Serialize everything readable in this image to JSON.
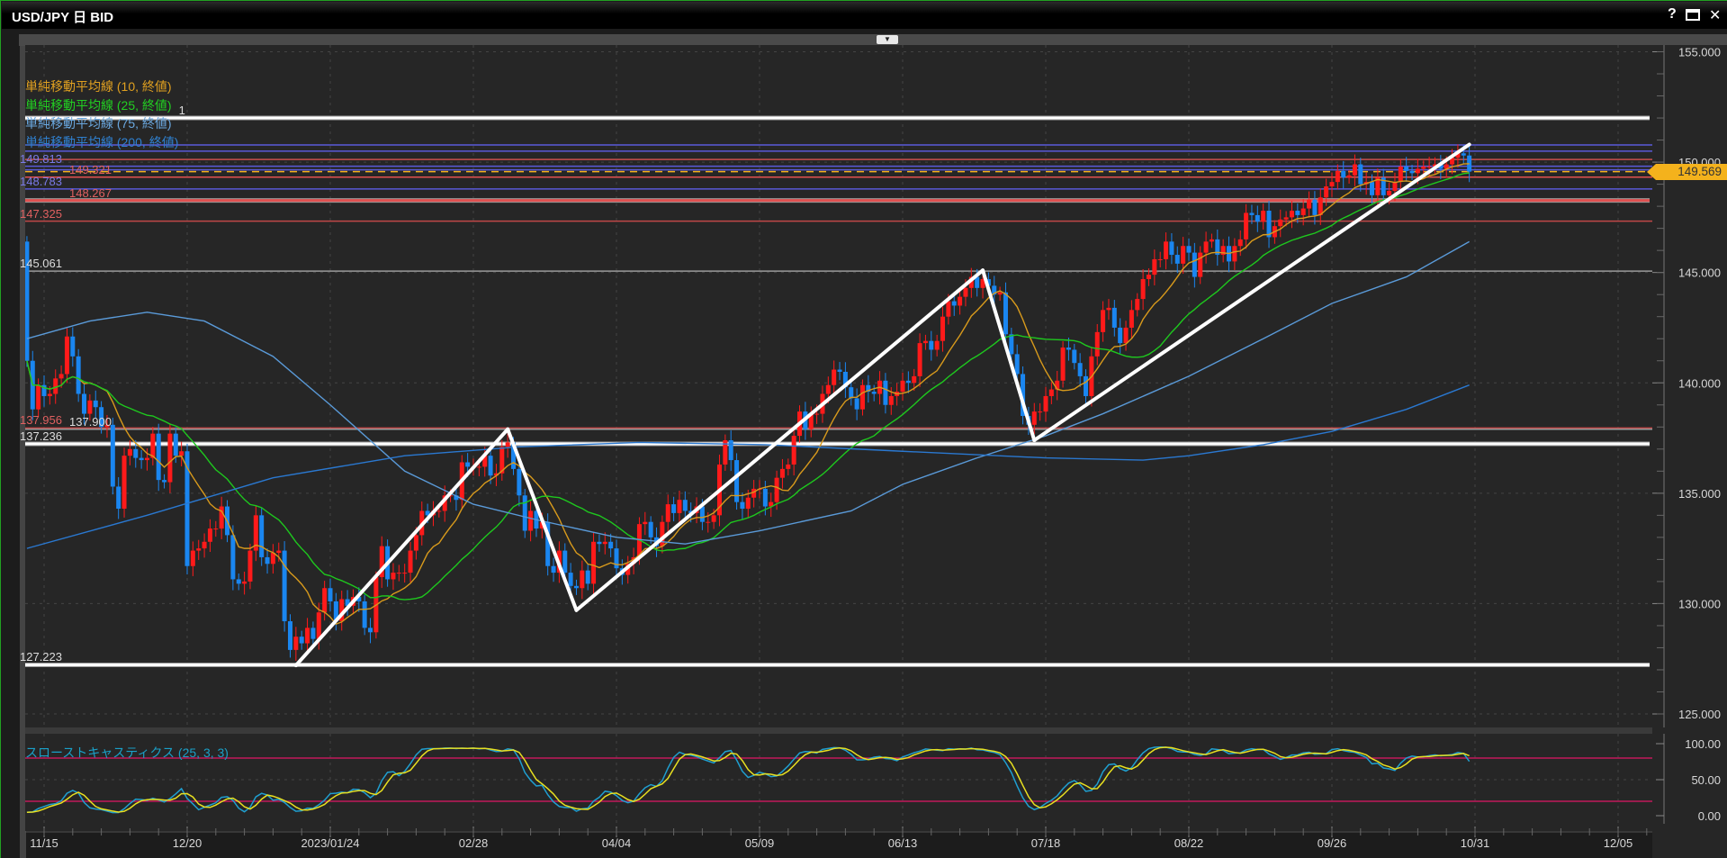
{
  "window": {
    "title": "USD/JPY 日 BID",
    "help_label": "?",
    "maximize_icon": "maximize-icon",
    "close_icon": "close-icon",
    "close_label": "✕"
  },
  "legend": [
    {
      "label": "単純移動平均線 (10, 終値)",
      "color": "#e0a020"
    },
    {
      "label": "単純移動平均線 (25, 終値)",
      "color": "#22d022"
    },
    {
      "label": "単純移動平均線 (75, 終値)",
      "color": "#6aa8e0"
    },
    {
      "label": "単純移動平均線 (200, 終値)",
      "color": "#2f80d0"
    }
  ],
  "stochastic": {
    "label": "スローストキャスティクス (25, 3, 3)",
    "params": [
      25,
      3,
      3
    ],
    "levels": [
      80,
      20
    ],
    "ylim": [
      0,
      100
    ],
    "ticks": [
      {
        "v": 100,
        "label": "100.00"
      },
      {
        "v": 50,
        "label": "50.00"
      },
      {
        "v": 0,
        "label": "0.00"
      }
    ],
    "k_color": "#1f9fd0",
    "d_color": "#e8e020",
    "level_color": "#c0185a"
  },
  "chart_data": {
    "type": "candlestick",
    "title": "USD/JPY 日 BID",
    "ylim": [
      125,
      155
    ],
    "y_ticks": [
      {
        "v": 155,
        "label": "155.000"
      },
      {
        "v": 150,
        "label": "150.000"
      },
      {
        "v": 145,
        "label": "145.000"
      },
      {
        "v": 140,
        "label": "140.000"
      },
      {
        "v": 135,
        "label": "135.000"
      },
      {
        "v": 130,
        "label": "130.000"
      },
      {
        "v": 125,
        "label": "125.000"
      }
    ],
    "x_ticks": [
      {
        "date": "2022-11-15",
        "label": "11/15"
      },
      {
        "date": "2022-12-20",
        "label": "12/20"
      },
      {
        "date": "2023-01-24",
        "label": "2023/01/24"
      },
      {
        "date": "2023-02-28",
        "label": "02/28"
      },
      {
        "date": "2023-04-04",
        "label": "04/04"
      },
      {
        "date": "2023-05-09",
        "label": "05/09"
      },
      {
        "date": "2023-06-13",
        "label": "06/13"
      },
      {
        "date": "2023-07-18",
        "label": "07/18"
      },
      {
        "date": "2023-08-22",
        "label": "08/22"
      },
      {
        "date": "2023-09-26",
        "label": "09/26"
      },
      {
        "date": "2023-10-31",
        "label": "10/31"
      },
      {
        "date": "2023-12-05",
        "label": "12/05"
      }
    ],
    "grid": true,
    "up_color": "#ff1a1a",
    "down_color": "#1a86f0",
    "candles": {
      "first_date": "2022-11-10",
      "first_open": 146.4,
      "closes": [
        141.0,
        138.8,
        139.9,
        139.4,
        139.5,
        140.2,
        140.4,
        142.1,
        141.2,
        139.5,
        138.6,
        139.2,
        138.9,
        138.0,
        138.1,
        135.3,
        134.3,
        136.7,
        137.0,
        136.6,
        136.5,
        136.6,
        137.7,
        135.6,
        135.5,
        137.7,
        136.7,
        136.9,
        131.7,
        132.4,
        132.5,
        132.8,
        133.4,
        133.4,
        134.4,
        133.1,
        131.1,
        130.9,
        131.0,
        132.4,
        134.0,
        132.1,
        131.8,
        132.3,
        132.4,
        129.2,
        127.9,
        128.5,
        128.2,
        128.9,
        128.4,
        129.6,
        130.7,
        130.1,
        129.2,
        130.2,
        129.9,
        130.3,
        130.1,
        128.9,
        128.7,
        131.2,
        132.6,
        131.1,
        131.4,
        131.4,
        131.4,
        132.4,
        133.1,
        134.2,
        134.0,
        134.2,
        134.2,
        134.9,
        134.9,
        134.7,
        136.4,
        136.2,
        136.2,
        136.2,
        136.7,
        135.8,
        135.9,
        137.1,
        137.3,
        136.1,
        134.9,
        133.3,
        134.2,
        133.4,
        133.7,
        131.7,
        131.4,
        132.4,
        131.4,
        130.8,
        130.7,
        131.5,
        130.9,
        132.8,
        132.7,
        132.8,
        132.5,
        131.6,
        131.3,
        131.8,
        132.1,
        133.6,
        133.7,
        133.0,
        132.6,
        133.7,
        134.5,
        134.1,
        134.7,
        134.2,
        134.1,
        134.4,
        133.7,
        133.7,
        134.0,
        136.3,
        137.4,
        136.5,
        134.6,
        134.3,
        134.8,
        135.2,
        135.2,
        134.4,
        134.6,
        135.7,
        136.1,
        136.3,
        137.6,
        138.7,
        137.9,
        138.6,
        138.6,
        139.5,
        139.9,
        140.6,
        140.5,
        139.8,
        139.3,
        138.8,
        139.9,
        139.6,
        139.5,
        140.1,
        139.0,
        139.4,
        139.6,
        140.1,
        140.0,
        140.3,
        141.8,
        141.9,
        141.5,
        141.9,
        143.0,
        143.7,
        143.5,
        143.9,
        144.3,
        144.8,
        144.3,
        144.7,
        144.4,
        144.0,
        144.1,
        142.2,
        141.3,
        140.4,
        138.5,
        138.1,
        138.7,
        138.7,
        139.4,
        139.7,
        140.1,
        141.6,
        141.5,
        140.9,
        140.3,
        139.4,
        141.2,
        142.3,
        143.3,
        143.4,
        142.5,
        141.8,
        142.5,
        143.3,
        143.8,
        144.7,
        144.9,
        145.6,
        145.6,
        146.4,
        145.8,
        145.4,
        146.2,
        145.9,
        144.8,
        145.9,
        146.4,
        146.5,
        145.8,
        146.2,
        145.5,
        146.2,
        146.5,
        147.7,
        147.6,
        147.3,
        147.8,
        146.6,
        147.1,
        147.4,
        147.5,
        147.8,
        147.6,
        147.9,
        148.3,
        147.6,
        148.4,
        148.9,
        149.1,
        149.6,
        149.3,
        149.4,
        149.9,
        149.0,
        149.1,
        148.5,
        149.3,
        148.5,
        148.7,
        149.1,
        149.8,
        149.6,
        149.5,
        149.7,
        149.8,
        149.8,
        149.9,
        149.7,
        149.9,
        150.2,
        150.4,
        150.3,
        149.569
      ]
    },
    "moving_averages": [
      {
        "name": "単純移動平均線 (10, 終値)",
        "period": 10,
        "color": "#d89a1c"
      },
      {
        "name": "単純移動平均線 (25, 終値)",
        "period": 25,
        "color": "#1ec81e"
      },
      {
        "name": "単純移動平均線 (75, 終値)",
        "period": 75,
        "color": "#5a9ad8",
        "points": [
          [
            "2022-11-10",
            142.0
          ],
          [
            "2022-11-25",
            142.8
          ],
          [
            "2022-12-10",
            143.2
          ],
          [
            "2022-12-25",
            142.8
          ],
          [
            "2023-01-10",
            141.2
          ],
          [
            "2023-01-24",
            139.0
          ],
          [
            "2023-02-10",
            136.0
          ],
          [
            "2023-02-28",
            134.5
          ],
          [
            "2023-03-15",
            133.8
          ],
          [
            "2023-04-04",
            133.0
          ],
          [
            "2023-04-20",
            132.7
          ],
          [
            "2023-05-09",
            133.3
          ],
          [
            "2023-05-31",
            134.2
          ],
          [
            "2023-06-13",
            135.4
          ],
          [
            "2023-07-01",
            136.6
          ],
          [
            "2023-07-18",
            137.6
          ],
          [
            "2023-08-01",
            138.6
          ],
          [
            "2023-08-22",
            140.3
          ],
          [
            "2023-09-10",
            142.0
          ],
          [
            "2023-09-26",
            143.6
          ],
          [
            "2023-10-15",
            144.8
          ],
          [
            "2023-10-30",
            146.4
          ]
        ]
      },
      {
        "name": "単純移動平均線 (200, 終値)",
        "period": 200,
        "color": "#2a78d0",
        "points": [
          [
            "2022-11-10",
            132.5
          ],
          [
            "2022-12-10",
            134.0
          ],
          [
            "2023-01-10",
            135.7
          ],
          [
            "2023-02-10",
            136.7
          ],
          [
            "2023-03-10",
            137.1
          ],
          [
            "2023-04-10",
            137.3
          ],
          [
            "2023-05-10",
            137.2
          ],
          [
            "2023-06-13",
            136.9
          ],
          [
            "2023-07-18",
            136.6
          ],
          [
            "2023-08-10",
            136.5
          ],
          [
            "2023-08-22",
            136.7
          ],
          [
            "2023-09-10",
            137.2
          ],
          [
            "2023-09-26",
            137.8
          ],
          [
            "2023-10-15",
            138.8
          ],
          [
            "2023-10-30",
            139.9
          ]
        ]
      }
    ],
    "horizontal_lines": [
      {
        "price": 152.0,
        "color": "#ffffff",
        "thick": true,
        "label": "1",
        "label_color": "#dddddd"
      },
      {
        "price": 150.78,
        "color": "#5a5ad8",
        "label": ""
      },
      {
        "price": 150.5,
        "color": "#5a5ad8",
        "label": ""
      },
      {
        "price": 150.12,
        "color": "#c85050",
        "label": ""
      },
      {
        "price": 149.813,
        "color": "#5a5ad8",
        "label": "149.813",
        "label_color": "#7a7ae8"
      },
      {
        "price": 149.65,
        "color": "#5a5ad8",
        "label": ""
      },
      {
        "price": 149.321,
        "color": "#e05050",
        "label": "149.321",
        "label_color": "#e06060"
      },
      {
        "price": 148.783,
        "color": "#5a5ad8",
        "label": "148.783",
        "label_color": "#7a7ae8"
      },
      {
        "price": 148.267,
        "color": "#e05050",
        "thick": true,
        "label": "148.267",
        "label_color": "#e06060"
      },
      {
        "price": 147.325,
        "color": "#c04848",
        "label": "147.325",
        "label_color": "#e06060"
      },
      {
        "price": 145.061,
        "color": "#9a9a9a",
        "label": "145.061",
        "label_color": "#dddddd"
      },
      {
        "price": 137.956,
        "color": "#c04848",
        "label": "137.956",
        "label_color": "#e06060"
      },
      {
        "price": 137.9,
        "color": "#9a9a9a",
        "label": "137.900",
        "label_color": "#dddddd"
      },
      {
        "price": 137.236,
        "color": "#ffffff",
        "thick": true,
        "label": "137.236",
        "label_color": "#dddddd"
      },
      {
        "price": 127.223,
        "color": "#ffffff",
        "thick": true,
        "label": "127.223",
        "label_color": "#dddddd"
      }
    ],
    "trend_lines": [
      [
        [
          "2023-01-16",
          127.2
        ],
        [
          "2023-03-08",
          137.9
        ]
      ],
      [
        [
          "2023-03-08",
          137.9
        ],
        [
          "2023-03-24",
          129.7
        ]
      ],
      [
        [
          "2023-03-24",
          129.7
        ],
        [
          "2023-07-03",
          145.1
        ]
      ],
      [
        [
          "2023-07-03",
          145.1
        ],
        [
          "2023-07-14",
          137.4
        ]
      ],
      [
        [
          "2023-07-14",
          137.4
        ],
        [
          "2023-10-30",
          150.8
        ]
      ]
    ],
    "last_price": {
      "value": 149.569,
      "label": "149.569",
      "color": "#f4b21c"
    }
  }
}
